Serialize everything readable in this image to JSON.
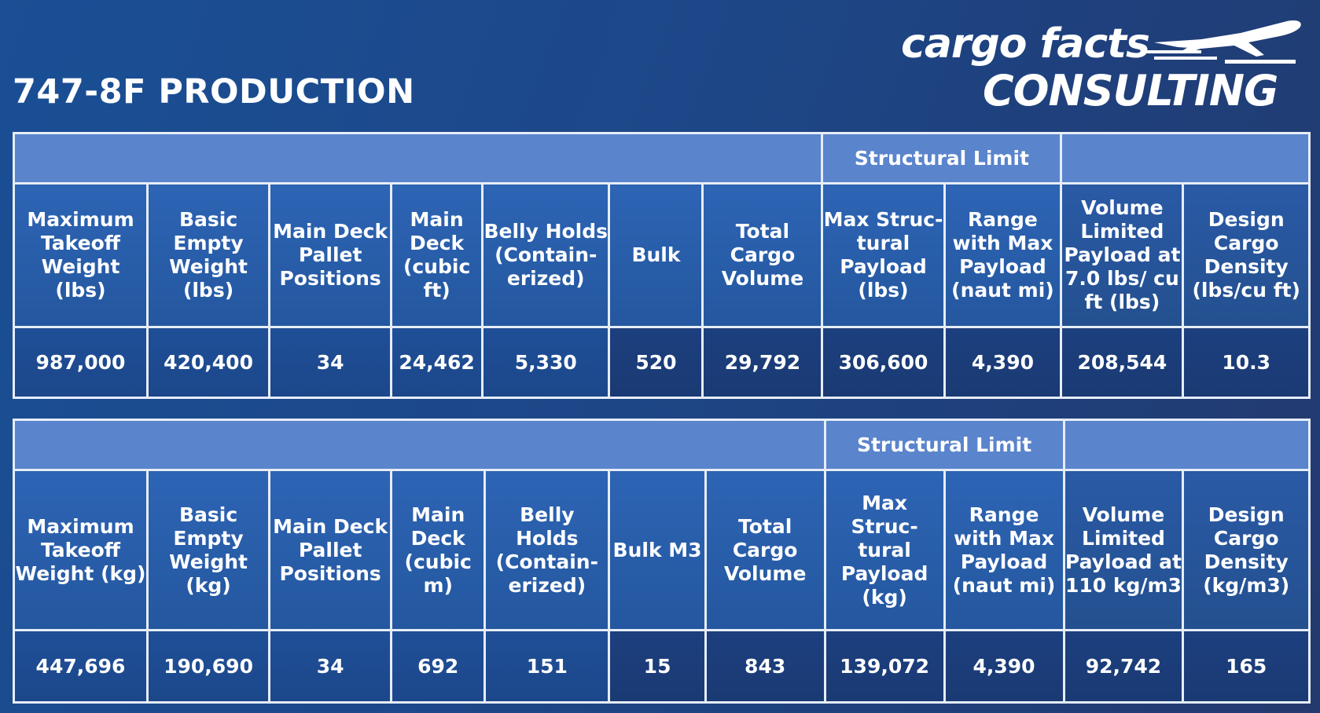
{
  "title": "747-8F PRODUCTION",
  "logo": {
    "line1": "cargo facts",
    "line2": "CONSULTING",
    "icon": "airplane-icon"
  },
  "colors": {
    "band": "#5a84cc",
    "header": "#2d64b4",
    "values": "#1f4f97",
    "border": "#e6edf7"
  },
  "imperial": {
    "band_label": "Structural Limit",
    "headers": [
      "Maximum Takeoff Weight (lbs)",
      "Basic Empty Weight (lbs)",
      "Main Deck Pallet Positions",
      "Main Deck (cubic ft)",
      "Belly Holds (Contain-erized)",
      "Bulk",
      "Total Cargo Volume",
      "Max Struc-tural Payload (lbs)",
      "Range with Max Payload (naut mi)",
      "Volume Limited Payload at 7.0 lbs/ cu ft (lbs)",
      "Design Cargo Density (lbs/cu ft)"
    ],
    "values": [
      "987,000",
      "420,400",
      "34",
      "24,462",
      "5,330",
      "520",
      "29,792",
      "306,600",
      "4,390",
      "208,544",
      "10.3"
    ]
  },
  "metric": {
    "band_label": "Structural Limit",
    "headers": [
      "Maximum Takeoff Weight (kg)",
      "Basic Empty Weight (kg)",
      "Main Deck Pallet Positions",
      "Main Deck (cubic m)",
      "Belly Holds (Contain-erized)",
      "Bulk M3",
      "Total Cargo Volume",
      "Max Struc-tural Payload (kg)",
      "Range with Max Payload (naut mi)",
      "Volume Limited Payload at 110 kg/m3",
      "Design Cargo Density (kg/m3)"
    ],
    "values": [
      "447,696",
      "190,690",
      "34",
      "692",
      "151",
      "15",
      "843",
      "139,072",
      "4,390",
      "92,742",
      "165"
    ]
  }
}
